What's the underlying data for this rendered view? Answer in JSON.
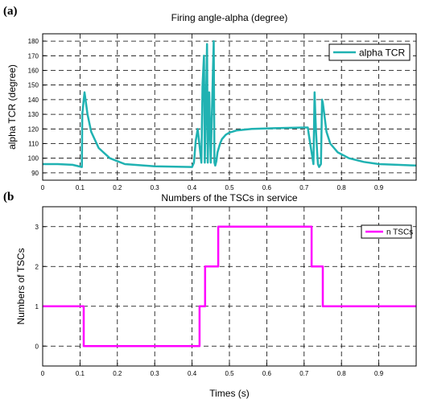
{
  "panels": [
    {
      "label": "(a)"
    },
    {
      "label": "(b"
    }
  ],
  "common_xlabel": "Times (s)",
  "chart_data": [
    {
      "type": "line",
      "title": "Firing angle-alpha (degree)",
      "xlabel": "",
      "ylabel": "alpha TCR (degree)",
      "xlim": [
        0,
        1
      ],
      "ylim": [
        85,
        185
      ],
      "xticks": [
        0,
        0.1,
        0.2,
        0.3,
        0.4,
        0.5,
        0.6,
        0.7,
        0.8,
        0.9
      ],
      "xtick_labels": [
        "0",
        "0.1",
        "0.2",
        "0.3",
        "0.4",
        "0.5",
        "0.6",
        "0.7",
        "0.8",
        "0.9"
      ],
      "yticks": [
        90,
        100,
        110,
        120,
        130,
        140,
        150,
        160,
        170,
        180
      ],
      "ytick_labels": [
        "90",
        "100",
        "110",
        "120",
        "130",
        "140",
        "150",
        "160",
        "170",
        "180"
      ],
      "grid": true,
      "legend_position": "top-right",
      "series": [
        {
          "name": "alpha TCR",
          "color": "#20b2b2",
          "x": [
            0,
            0.04,
            0.08,
            0.105,
            0.106,
            0.112,
            0.12,
            0.13,
            0.15,
            0.18,
            0.22,
            0.3,
            0.4,
            0.405,
            0.41,
            0.415,
            0.425,
            0.428,
            0.432,
            0.434,
            0.438,
            0.44,
            0.442,
            0.446,
            0.448,
            0.45,
            0.455,
            0.458,
            0.46,
            0.462,
            0.465,
            0.468,
            0.475,
            0.48,
            0.49,
            0.5,
            0.52,
            0.56,
            0.62,
            0.7,
            0.71,
            0.712,
            0.715,
            0.72,
            0.725,
            0.728,
            0.73,
            0.732,
            0.735,
            0.737,
            0.74,
            0.745,
            0.748,
            0.75,
            0.755,
            0.76,
            0.77,
            0.79,
            0.82,
            0.86,
            0.9,
            0.95,
            1.0
          ],
          "y": [
            96,
            96,
            95.5,
            94,
            130,
            145,
            130,
            118,
            107,
            100,
            96,
            94.5,
            94,
            97,
            112,
            120,
            97,
            150,
            170,
            97,
            148,
            178,
            97,
            145,
            120,
            97,
            150,
            180,
            97,
            95,
            98,
            104,
            110,
            113,
            116,
            117.5,
            119,
            120,
            120.5,
            121,
            121,
            117,
            112,
            104,
            96,
            145,
            130,
            118,
            104,
            96,
            94,
            96,
            140,
            138,
            128,
            118,
            110,
            104,
            100,
            97.5,
            96,
            95.5,
            95
          ]
        }
      ]
    },
    {
      "type": "line",
      "title": "Numbers of the TSCs in service",
      "xlabel": "Times (s)",
      "ylabel": "Numbers of TSCs",
      "xlim": [
        0,
        1
      ],
      "ylim": [
        -0.5,
        3.5
      ],
      "xticks": [
        0,
        0.1,
        0.2,
        0.3,
        0.4,
        0.5,
        0.6,
        0.7,
        0.8,
        0.9
      ],
      "xtick_labels": [
        "0",
        "0.1",
        "0.2",
        "0.3",
        "0.4",
        "0.5",
        "0.6",
        "0.7",
        "0.8",
        "0.9"
      ],
      "yticks": [
        0,
        1,
        2,
        3
      ],
      "ytick_labels": [
        "0",
        "1",
        "2",
        "3"
      ],
      "grid": true,
      "legend_position": "top-right",
      "series": [
        {
          "name": "n TSCs",
          "color": "#ff00ff",
          "x": [
            0,
            0.11,
            0.11,
            0.42,
            0.42,
            0.435,
            0.435,
            0.47,
            0.47,
            0.72,
            0.72,
            0.75,
            0.75,
            1.0
          ],
          "y": [
            1,
            1,
            0,
            0,
            1,
            1,
            2,
            2,
            3,
            3,
            2,
            2,
            1,
            1
          ]
        }
      ]
    }
  ]
}
